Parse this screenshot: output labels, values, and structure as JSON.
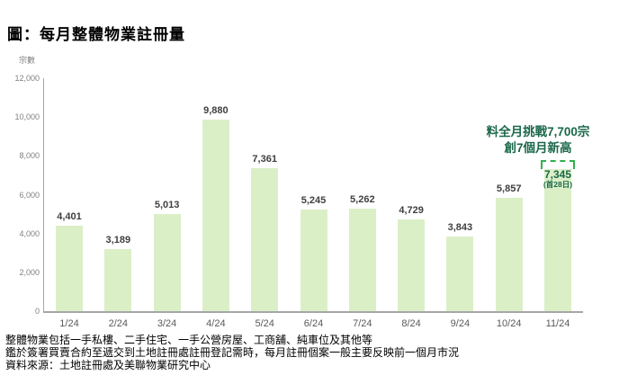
{
  "title": "圖：每月整體物業註冊量",
  "y_axis_unit": "宗數",
  "annotation": {
    "line1": "料全月挑戰7,700宗",
    "line2": "創7個月新高"
  },
  "footnotes": [
    "整體物業包括一手私樓、二手住宅、一手公營房屋、工商舖、純車位及其他等",
    "鑑於簽署買賣合約至遞交到土地註冊處註冊登記需時，每月註冊個案一般主要反映前一個月市況",
    "資料來源：土地註冊處及美聯物業研究中心"
  ],
  "colors": {
    "bar_fill": "#dbefc7",
    "value_label": "#3f3f3f",
    "accent_dark_green": "#1a684a",
    "projection_dash_green": "#2fb14e",
    "axis_line": "#a6a6a6",
    "tick_label": "#808080",
    "x_label": "#595959"
  },
  "chart_data": {
    "type": "bar",
    "title": "圖：每月整體物業註冊量",
    "ylabel": "宗數",
    "categories": [
      "1/24",
      "2/24",
      "3/24",
      "4/24",
      "5/24",
      "6/24",
      "7/24",
      "8/24",
      "9/24",
      "10/24",
      "11/24"
    ],
    "values": [
      4401,
      3189,
      5013,
      9880,
      7361,
      5245,
      5262,
      4729,
      3843,
      5857,
      7345
    ],
    "value_labels": [
      "4,401",
      "3,189",
      "5,013",
      "9,880",
      "7,361",
      "5,245",
      "5,262",
      "4,729",
      "3,843",
      "5,857",
      "7,345"
    ],
    "last_bar_sub_label": "(首28日)",
    "projection_value": 7700,
    "ylim": [
      0,
      12000
    ],
    "y_tick_step": 2000,
    "y_tick_labels": [
      "0",
      "2,000",
      "4,000",
      "6,000",
      "8,000",
      "10,000",
      "12,000"
    ],
    "grid": "off",
    "legend": "none"
  }
}
